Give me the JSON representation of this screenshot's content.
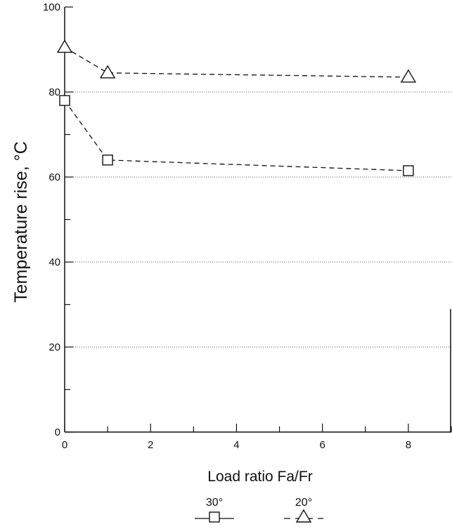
{
  "chart_data": {
    "type": "line",
    "title": "",
    "xlabel": "Load ratio Fa/Fr",
    "ylabel": "Temperature rise, °C",
    "xlim": [
      0,
      9
    ],
    "ylim": [
      0,
      100
    ],
    "xticks": [
      0,
      2,
      4,
      6,
      8
    ],
    "xtick_labels": [
      "0",
      "2",
      "4",
      "6",
      "8"
    ],
    "yticks": [
      0,
      20,
      40,
      60,
      80,
      100
    ],
    "ytick_labels": [
      "0",
      "20",
      "40",
      "60",
      "80",
      "100"
    ],
    "y_minor_step": 10,
    "grid": "horizontal dotted",
    "legend_position": "bottom",
    "series": [
      {
        "name": "30°",
        "marker": "square",
        "line_style": "dashed",
        "x": [
          0,
          1,
          8
        ],
        "y": [
          78,
          64,
          61.5
        ]
      },
      {
        "name": "20°",
        "marker": "triangle",
        "line_style": "dashed",
        "x": [
          0,
          1,
          8
        ],
        "y": [
          90.5,
          84.5,
          83.5
        ]
      }
    ],
    "colors": {
      "ink": "#111111",
      "grid": "#555555",
      "background": "#ffffff"
    }
  }
}
